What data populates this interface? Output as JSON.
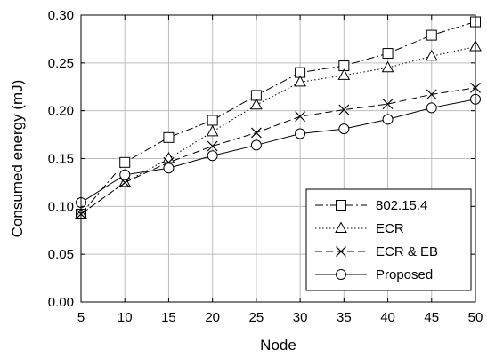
{
  "chart_data": {
    "type": "line",
    "xlabel": "Node",
    "ylabel": "Consumed energy (mJ)",
    "xlim": [
      5,
      50
    ],
    "ylim": [
      0.0,
      0.3
    ],
    "xticks": [
      5,
      10,
      15,
      20,
      25,
      30,
      35,
      40,
      45,
      50
    ],
    "xtick_labels": [
      "5",
      "10",
      "15",
      "20",
      "25",
      "30",
      "35",
      "40",
      "45",
      "50"
    ],
    "yticks": [
      0.0,
      0.05,
      0.1,
      0.15,
      0.2,
      0.25,
      0.3
    ],
    "ytick_labels": [
      "0.00",
      "0.05",
      "0.10",
      "0.15",
      "0.20",
      "0.25",
      "0.30"
    ],
    "grid": true,
    "legend_position": "bottom-right",
    "x": [
      5,
      10,
      15,
      20,
      25,
      30,
      35,
      40,
      45,
      50
    ],
    "series": [
      {
        "name": "802.15.4",
        "marker": "square",
        "dash": "dash-dot",
        "values": [
          0.092,
          0.146,
          0.172,
          0.19,
          0.216,
          0.24,
          0.247,
          0.26,
          0.279,
          0.293
        ]
      },
      {
        "name": "ECR",
        "marker": "triangle",
        "dash": "dotted",
        "values": [
          0.092,
          0.125,
          0.15,
          0.178,
          0.206,
          0.23,
          0.237,
          0.245,
          0.257,
          0.267
        ]
      },
      {
        "name": "ECR & EB",
        "marker": "x",
        "dash": "dashed",
        "values": [
          0.092,
          0.125,
          0.146,
          0.163,
          0.177,
          0.194,
          0.201,
          0.207,
          0.217,
          0.224
        ]
      },
      {
        "name": "Proposed",
        "marker": "circle",
        "dash": "solid",
        "values": [
          0.104,
          0.133,
          0.14,
          0.153,
          0.164,
          0.176,
          0.181,
          0.191,
          0.203,
          0.212
        ]
      }
    ]
  }
}
